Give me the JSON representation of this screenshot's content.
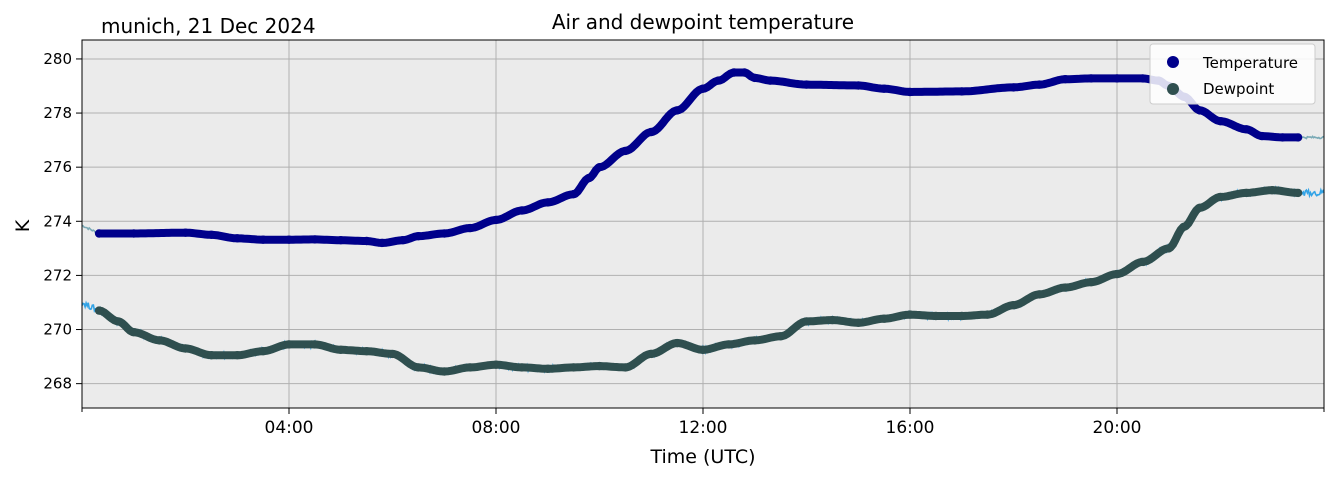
{
  "header": {
    "location_date": "munich, 21 Dec 2024",
    "title": "Air and dewpoint temperature"
  },
  "colors": {
    "temperature": "#00008b",
    "dewpoint": "#2f4f4f",
    "temperature_raw": "#6ea3b0",
    "dewpoint_raw": "#1e9be6",
    "plot_bg": "#ebebeb",
    "grid": "#b0b0b0"
  },
  "chart_data": {
    "type": "scatter",
    "title": "Air and dewpoint temperature",
    "xlabel": "Time (UTC)",
    "ylabel": "K",
    "x_unit": "hours UTC",
    "xlim": [
      0,
      24
    ],
    "ylim": [
      267.1,
      280.7
    ],
    "xticks": [
      {
        "x": 4,
        "label": "04:00"
      },
      {
        "x": 8,
        "label": "08:00"
      },
      {
        "x": 12,
        "label": "12:00"
      },
      {
        "x": 16,
        "label": "16:00"
      },
      {
        "x": 20,
        "label": "20:00"
      }
    ],
    "yticks": [
      268,
      270,
      272,
      274,
      276,
      278,
      280
    ],
    "grid": true,
    "legend_position": "top-right",
    "series": [
      {
        "name": "Temperature",
        "x": [
          0.33,
          1.0,
          2.0,
          2.5,
          3.0,
          3.5,
          4.0,
          4.5,
          5.0,
          5.5,
          5.8,
          6.2,
          6.5,
          7.0,
          7.5,
          8.0,
          8.5,
          9.0,
          9.5,
          9.8,
          10.0,
          10.5,
          11.0,
          11.5,
          12.0,
          12.3,
          12.6,
          12.8,
          13.0,
          13.3,
          14.0,
          15.0,
          15.5,
          16.0,
          17.0,
          18.0,
          18.5,
          19.0,
          19.5,
          20.0,
          20.5,
          20.8,
          21.0,
          21.3,
          21.6,
          22.0,
          22.5,
          22.8,
          23.2,
          23.5
        ],
        "y": [
          273.55,
          273.55,
          273.58,
          273.5,
          273.37,
          273.32,
          273.32,
          273.33,
          273.3,
          273.27,
          273.2,
          273.3,
          273.45,
          273.55,
          273.75,
          274.05,
          274.4,
          274.7,
          275.0,
          275.6,
          276.0,
          276.6,
          277.3,
          278.1,
          278.9,
          279.2,
          279.5,
          279.5,
          279.3,
          279.2,
          279.05,
          279.02,
          278.9,
          278.78,
          278.8,
          278.95,
          279.05,
          279.25,
          279.28,
          279.28,
          279.28,
          279.2,
          279.0,
          278.6,
          278.1,
          277.7,
          277.4,
          277.15,
          277.1,
          277.1
        ]
      },
      {
        "name": "Dewpoint",
        "x": [
          0.33,
          0.7,
          1.0,
          1.5,
          2.0,
          2.5,
          3.0,
          3.5,
          4.0,
          4.5,
          5.0,
          5.5,
          6.0,
          6.5,
          7.0,
          7.5,
          8.0,
          8.5,
          9.0,
          9.5,
          10.0,
          10.5,
          11.0,
          11.5,
          12.0,
          12.5,
          13.0,
          13.5,
          14.0,
          14.5,
          15.0,
          15.5,
          16.0,
          16.5,
          17.0,
          17.5,
          18.0,
          18.5,
          19.0,
          19.5,
          20.0,
          20.5,
          21.0,
          21.3,
          21.6,
          22.0,
          22.5,
          23.0,
          23.5
        ],
        "y": [
          270.7,
          270.3,
          269.9,
          269.6,
          269.3,
          269.05,
          269.05,
          269.2,
          269.45,
          269.45,
          269.25,
          269.2,
          269.1,
          268.6,
          268.45,
          268.6,
          268.7,
          268.6,
          268.55,
          268.6,
          268.65,
          268.6,
          269.1,
          269.5,
          269.25,
          269.45,
          269.6,
          269.75,
          270.3,
          270.35,
          270.25,
          270.4,
          270.55,
          270.5,
          270.5,
          270.55,
          270.9,
          271.3,
          271.55,
          271.75,
          272.05,
          272.5,
          273.0,
          273.8,
          274.5,
          274.9,
          275.05,
          275.15,
          275.05
        ]
      }
    ]
  }
}
